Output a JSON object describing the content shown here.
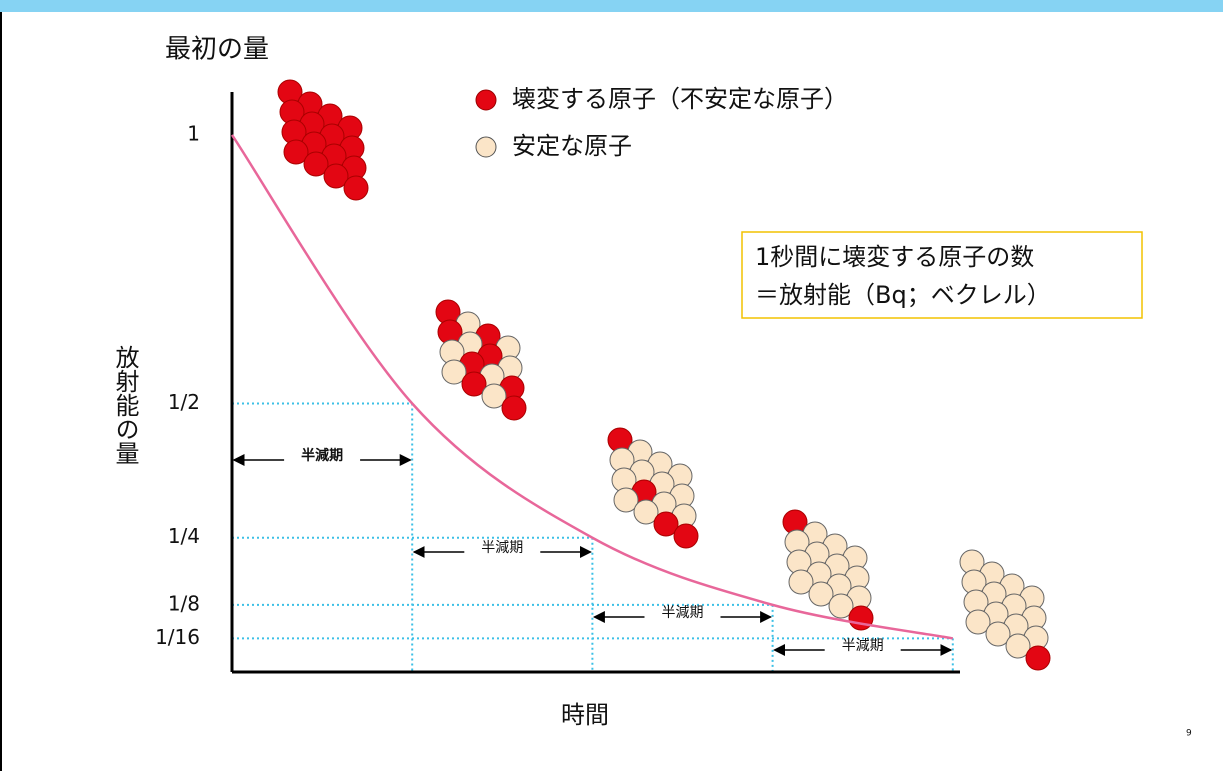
{
  "chart_data": {
    "type": "line",
    "title": "最初の量",
    "x_label": "時間",
    "y_label": "放射能の量",
    "x": [
      0,
      1,
      2,
      3,
      4
    ],
    "series": [
      {
        "color": "#e8679a",
        "values": [
          1,
          0.5,
          0.25,
          0.125,
          0.0625
        ]
      }
    ],
    "xlim": [
      0,
      4.04
    ],
    "ylim": [
      0,
      1.08
    ],
    "yticks": [
      {
        "value": 1,
        "label": "1"
      },
      {
        "value": 0.5,
        "label": "1/2"
      },
      {
        "value": 0.25,
        "label": "1/4"
      },
      {
        "value": 0.125,
        "label": "1/8"
      },
      {
        "value": 0.0625,
        "label": "1/16"
      }
    ],
    "guide_color": "#3cc0e6",
    "annotations": [
      "半減期",
      "半減期",
      "半減期",
      "半減期"
    ],
    "legend": [
      {
        "label": "壊変する原子（不安定な原子）",
        "color": "#e30613"
      },
      {
        "label": "安定な原子",
        "color": "#fbe5c8"
      }
    ],
    "note_lines": [
      "1秒間に壊変する原子の数",
      "＝放射能（Bq；ベクレル）"
    ],
    "page_number": "9"
  }
}
